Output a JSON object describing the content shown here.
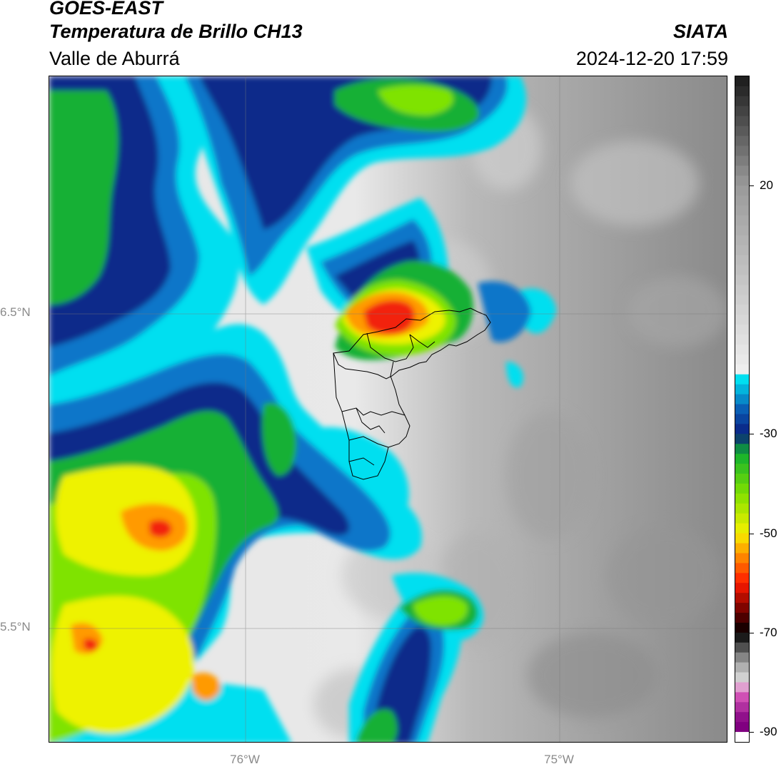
{
  "header": {
    "satellite": "GOES-EAST",
    "product": "Temperatura de Brillo CH13",
    "region": "Valle de Aburrá",
    "agency": "SIATA",
    "datetime": "2024-12-20 17:59"
  },
  "axes": {
    "lat_ticks": [
      {
        "label": "6.5°N",
        "value": 6.5
      },
      {
        "label": "5.5°N",
        "value": 5.5
      }
    ],
    "lon_ticks": [
      {
        "label": "76°W",
        "value": -76.0
      },
      {
        "label": "75°W",
        "value": -75.0
      }
    ],
    "gridlines": true
  },
  "colorbar": {
    "ticks": [
      {
        "label": "20",
        "value": 20
      },
      {
        "label": "-30",
        "value": -30
      },
      {
        "label": "-50",
        "value": -50
      },
      {
        "label": "-70",
        "value": -70
      },
      {
        "label": "-90",
        "value": -90
      }
    ],
    "range": [
      -92,
      42
    ],
    "colors": {
      "warm_top": "#1a1a1a",
      "warm_mid": "#9a9a9a",
      "warm_low": "#f0f0f0",
      "cyan": "#00dff0",
      "blue": "#0a5fb5",
      "navy": "#0a1f80",
      "green": "#10b030",
      "lime": "#80e000",
      "yellow": "#f5f000",
      "orange": "#ff9900",
      "red": "#ff1a00",
      "darkred": "#660000",
      "black": "#000000",
      "pink": "#e060c0",
      "purple": "#800080"
    }
  },
  "map_colors": {
    "gray_east": "#8f8f8f",
    "gray_mid": "#b5b5b5",
    "light": "#ececec",
    "cyan": "#00dff0",
    "blue": "#1176c9",
    "navy": "#0b2a8a",
    "green": "#18b034",
    "lime": "#7fe300",
    "yellow": "#eef200",
    "orange": "#ff9a00",
    "red": "#f2200a",
    "outline": "#000000"
  }
}
